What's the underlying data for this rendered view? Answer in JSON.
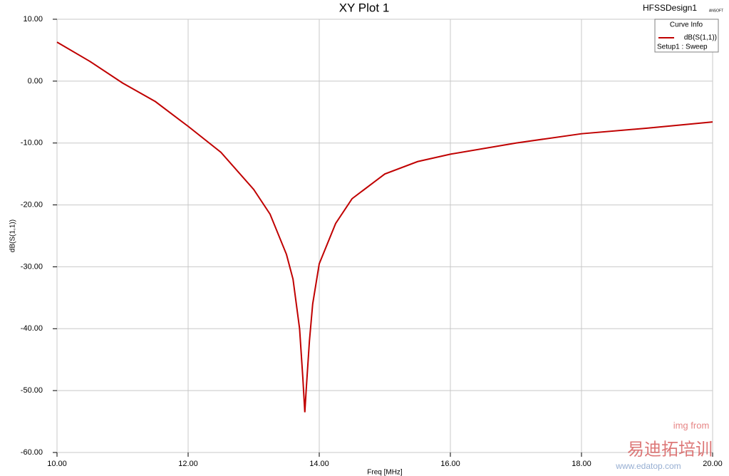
{
  "chart_data": {
    "type": "line",
    "title": "XY Plot 1",
    "design": "HFSSDesign1",
    "logo": "ANSOFT",
    "legend_title": "Curve Info",
    "x_label": "Freq [MHz]",
    "y_label": "dB(S(1,1))",
    "watermark": [
      "img from",
      "www.edatop.com",
      "易迪拓培训"
    ],
    "x": [
      10,
      10.5,
      11,
      11.5,
      12,
      12.5,
      13,
      13.25,
      13.5,
      13.6,
      13.7,
      13.75,
      13.78,
      13.8,
      13.85,
      13.9,
      14,
      14.25,
      14.5,
      15,
      15.5,
      16,
      17,
      18,
      19,
      20
    ],
    "series": [
      {
        "name": "dB(S(1,1))",
        "setup": "Setup1 : Sweep",
        "color": "#c00000",
        "values": [
          6.3,
          3.2,
          -0.3,
          -3.3,
          -7.3,
          -11.5,
          -17.5,
          -21.5,
          -28,
          -32,
          -40,
          -48,
          -53.5,
          -50,
          -42,
          -36,
          -29.5,
          -23,
          -19,
          -15,
          -13,
          -11.8,
          -10,
          -8.5,
          -7.6,
          -6.6
        ]
      }
    ],
    "xlim": [
      10,
      20
    ],
    "ylim": [
      -60,
      10
    ],
    "xticks": [
      {
        "value": 10,
        "label": "10.00"
      },
      {
        "value": 12,
        "label": "12.00"
      },
      {
        "value": 14,
        "label": "14.00"
      },
      {
        "value": 16,
        "label": "16.00"
      },
      {
        "value": 18,
        "label": "18.00"
      },
      {
        "value": 20,
        "label": "20.00"
      }
    ],
    "yticks": [
      {
        "value": -60,
        "label": "-60.00"
      },
      {
        "value": -50,
        "label": "-50.00"
      },
      {
        "value": -40,
        "label": "-40.00"
      },
      {
        "value": -30,
        "label": "-30.00"
      },
      {
        "value": -20,
        "label": "-20.00"
      },
      {
        "value": -10,
        "label": "-10.00"
      },
      {
        "value": 0,
        "label": "0.00"
      },
      {
        "value": 10,
        "label": "10.00"
      }
    ],
    "grid": true
  }
}
